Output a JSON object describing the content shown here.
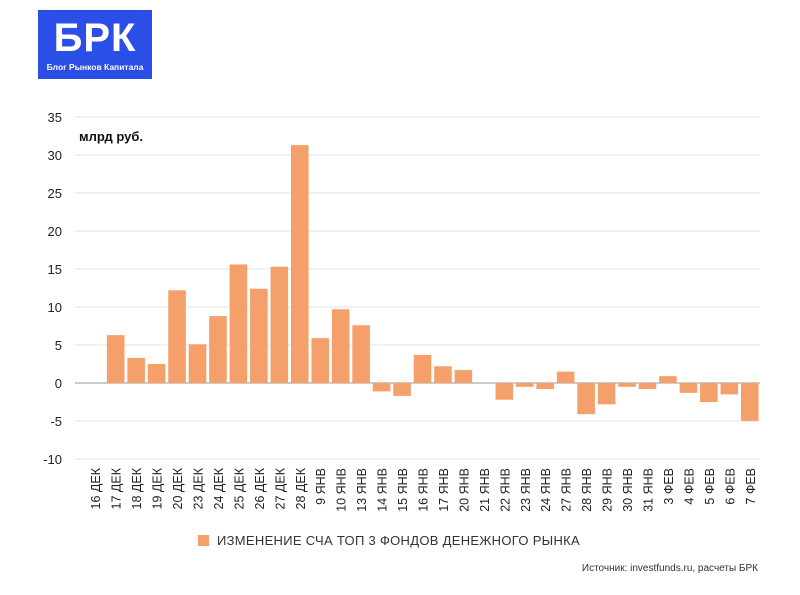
{
  "logo": {
    "title": "БРК",
    "subtitle": "Блог Рынков Капитала"
  },
  "chart_data": {
    "type": "bar",
    "title": "",
    "xlabel": "",
    "ylabel": "млрд руб.",
    "ylim": [
      -10,
      35
    ],
    "yticks": [
      35,
      30,
      25,
      20,
      15,
      10,
      5,
      0,
      -5,
      -10
    ],
    "grid": true,
    "bar_color": "#f5a06a",
    "categories": [
      "16 ДЕК",
      "17 ДЕК",
      "18 ДЕК",
      "19 ДЕК",
      "20 ДЕК",
      "23 ДЕК",
      "24 ДЕК",
      "25 ДЕК",
      "26 ДЕК",
      "27 ДЕК",
      "28 ДЕК",
      "9 ЯНВ",
      "10 ЯНВ",
      "13 ЯНВ",
      "14 ЯНВ",
      "15 ЯНВ",
      "16 ЯНВ",
      "17 ЯНВ",
      "20 ЯНВ",
      "21 ЯНВ",
      "22 ЯНВ",
      "23 ЯНВ",
      "24 ЯНВ",
      "27 ЯНВ",
      "28 ЯНВ",
      "29 ЯНВ",
      "30 ЯНВ",
      "31 ЯНВ",
      "3 ФЕВ",
      "4 ФЕВ",
      "5 ФЕВ",
      "6 ФЕВ",
      "7 ФЕВ"
    ],
    "series": [
      {
        "name": "ИЗМЕНЕНИЕ СЧА ТОП 3 ФОНДОВ ДЕНЕЖНОГО РЫНКА",
        "values": [
          0.0,
          6.3,
          3.3,
          2.5,
          12.2,
          5.1,
          8.8,
          15.6,
          12.4,
          15.3,
          31.3,
          5.9,
          9.7,
          7.6,
          -1.1,
          -1.7,
          3.7,
          2.2,
          1.7,
          0.0,
          -2.2,
          -0.5,
          -0.8,
          1.5,
          -4.1,
          -2.8,
          -0.5,
          -0.8,
          0.9,
          -1.3,
          -2.5,
          -1.5,
          -5.0
        ]
      }
    ],
    "legend": "bottom"
  },
  "source": "Источник: investfunds.ru, расчеты БРК"
}
